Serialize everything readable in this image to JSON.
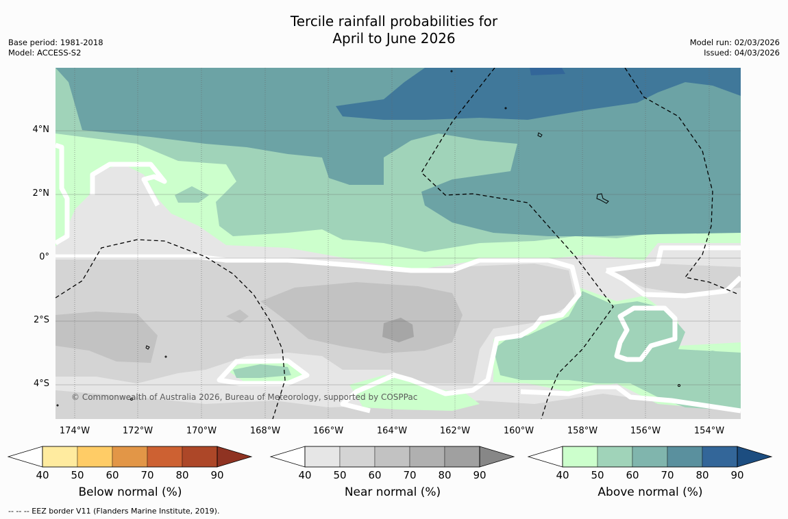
{
  "title_line1": "Tercile rainfall probabilities for",
  "title_line2": "April to June 2026",
  "base_period": "Base period: 1981-2018",
  "model": "Model: ACCESS-S2",
  "model_run": "Model run: 02/03/2026",
  "issued": "Issued: 04/03/2026",
  "map": {
    "lat_ticks": [
      "4°N",
      "2°N",
      "0°",
      "2°S",
      "4°S"
    ],
    "lon_ticks": [
      "174°W",
      "172°W",
      "170°W",
      "168°W",
      "166°W",
      "164°W",
      "162°W",
      "160°W",
      "158°W",
      "156°W",
      "154°W"
    ],
    "copyright": "© Commonwealth of Australia 2026, Bureau of Meteorology, supported by COSPPac",
    "land_color": "#000000",
    "eez_color": "#000000"
  },
  "colorbars": [
    {
      "label": "Below normal (%)",
      "ticks": [
        "40",
        "50",
        "60",
        "70",
        "80",
        "90"
      ],
      "colors": [
        "#ffffff",
        "#ffeb9f",
        "#ffcc66",
        "#e29647",
        "#cd6132",
        "#ad4728",
        "#8f3322"
      ]
    },
    {
      "label": "Near normal (%)",
      "ticks": [
        "40",
        "50",
        "60",
        "70",
        "80",
        "90"
      ],
      "colors": [
        "#ffffff",
        "#e6e6e6",
        "#d4d4d4",
        "#c2c2c2",
        "#b0b0b0",
        "#a0a0a0",
        "#878787"
      ]
    },
    {
      "label": "Above normal (%)",
      "ticks": [
        "40",
        "50",
        "60",
        "70",
        "80",
        "90"
      ],
      "colors": [
        "#ffffff",
        "#ccffcc",
        "#a0d3b9",
        "#80b5ad",
        "#5a909e",
        "#336699",
        "#1c4d80"
      ]
    }
  ],
  "footnote": "--  --  -- EEZ border V11 (Flanders Marine Institute, 2019)."
}
